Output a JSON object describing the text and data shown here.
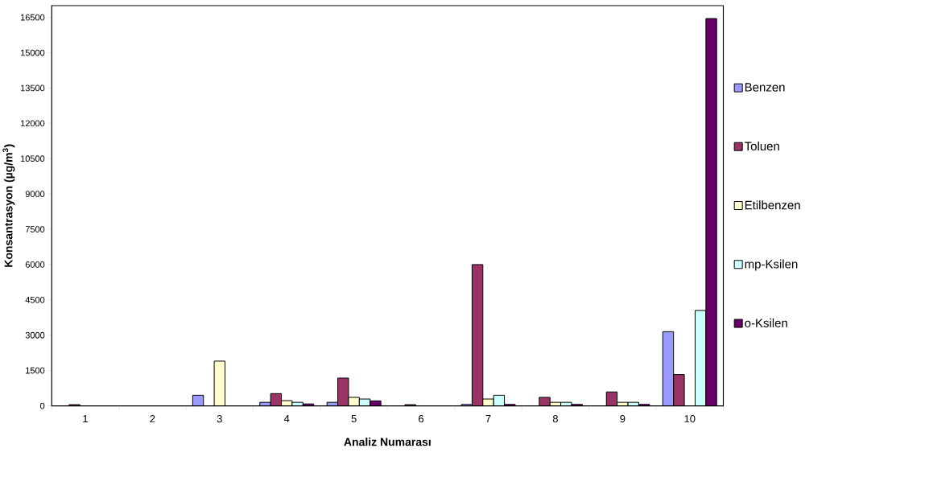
{
  "chart_data": {
    "type": "bar",
    "xlabel": "Analiz Numarası",
    "ylabel": "Konsantrasyon (µg/m$^{3}$)",
    "categories": [
      "1",
      "2",
      "3",
      "4",
      "5",
      "6",
      "7",
      "8",
      "9",
      "10"
    ],
    "series": [
      {
        "name": "Benzen",
        "color": "#9999ff",
        "values": [
          null,
          null,
          450,
          150,
          150,
          null,
          60,
          null,
          null,
          3150
        ]
      },
      {
        "name": "Toluen",
        "color": "#993366",
        "values": [
          50,
          null,
          null,
          520,
          1180,
          50,
          6000,
          360,
          590,
          1330
        ]
      },
      {
        "name": "Etilbenzen",
        "color": "#ffffcc",
        "values": [
          null,
          null,
          1900,
          220,
          360,
          null,
          290,
          150,
          150,
          null
        ]
      },
      {
        "name": "mp-Ksilen",
        "color": "#ccffff",
        "values": [
          null,
          null,
          null,
          150,
          290,
          null,
          450,
          150,
          150,
          4050
        ]
      },
      {
        "name": "o-Ksilen",
        "color": "#660066",
        "values": [
          null,
          null,
          null,
          80,
          210,
          null,
          60,
          60,
          60,
          16450
        ]
      }
    ],
    "ylim": [
      0,
      17000
    ],
    "yticks": [
      0,
      1500,
      3000,
      4500,
      6000,
      7500,
      9000,
      10500,
      12000,
      13500,
      15000,
      16500
    ],
    "legend": "right"
  }
}
